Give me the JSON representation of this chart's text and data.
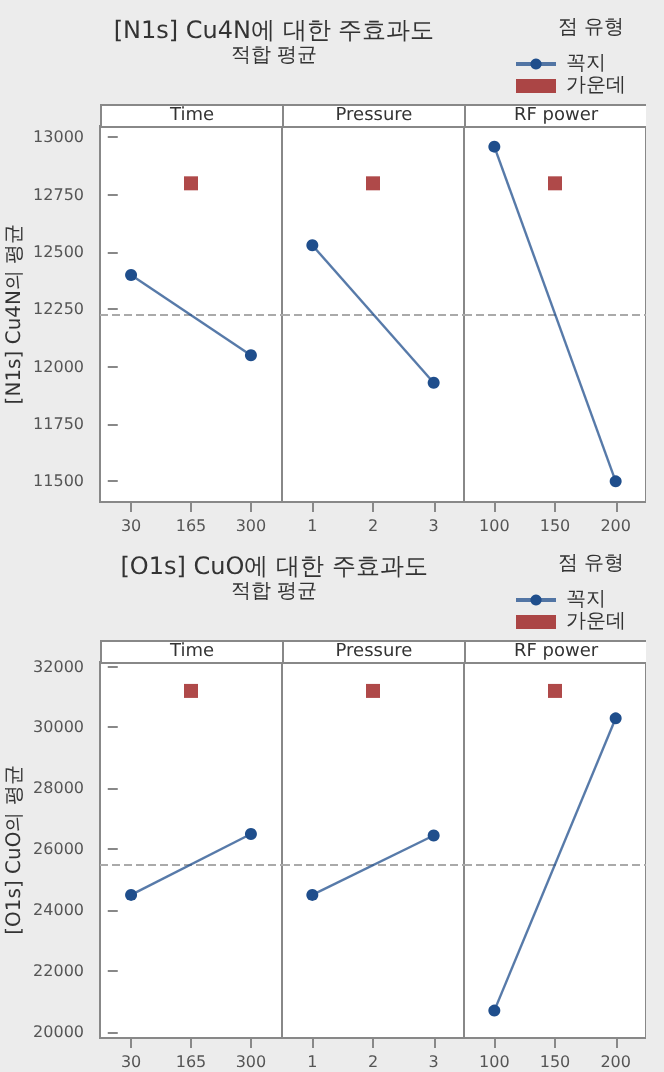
{
  "chart_data": [
    {
      "type": "line",
      "title": "[N1s] Cu4N에 대한 주효과도",
      "subtitle": "적합 평균",
      "ylabel": "[N1s] Cu4N의 평균",
      "xlabel": "Time",
      "legend": "top right",
      "legend_title": "점 유형",
      "marker": "circle",
      "grid": false,
      "xlim": [
        -40,
        370
      ],
      "xticks": [
        30,
        165,
        300
      ],
      "ylim": [
        11410,
        13050
      ],
      "yticks": [
        11500,
        11750,
        12000,
        12250,
        12500,
        12750,
        13000
      ],
      "ref_lines": [
        {
          "axis": "y",
          "value": 12225,
          "color": "#aaaaaa",
          "line_style": "dashed"
        }
      ],
      "series": [
        {
          "name": "꼭지",
          "color": "#1f4e8c",
          "x": [
            30,
            300
          ],
          "values": [
            12400,
            12050
          ]
        },
        {
          "name": "가운데",
          "type": "scatter",
          "marker": "square",
          "color": "#9b1c1c",
          "x": [
            165
          ],
          "values": [
            12800
          ]
        }
      ]
    },
    {
      "type": "line",
      "xlabel": "Pressure",
      "marker": "circle",
      "grid": false,
      "tick_labels": "x",
      "xlim": [
        0.5,
        3.5
      ],
      "xticks": [
        1,
        2,
        3
      ],
      "ylim": [
        11410,
        13050
      ],
      "ref_lines": [
        {
          "axis": "y",
          "value": 12225,
          "color": "#aaaaaa",
          "line_style": "dashed"
        }
      ],
      "series": [
        {
          "color": "#1f4e8c",
          "x": [
            1,
            3
          ],
          "values": [
            12530,
            11930
          ]
        },
        {
          "type": "scatter",
          "marker": "square",
          "color": "#9b1c1c",
          "x": [
            2
          ],
          "values": [
            12800
          ]
        }
      ]
    },
    {
      "type": "line",
      "xlabel": "RF power",
      "marker": "circle",
      "grid": false,
      "tick_labels": "x",
      "xlim": [
        75,
        225
      ],
      "xticks": [
        100,
        150,
        200
      ],
      "ylim": [
        11410,
        13050
      ],
      "ref_lines": [
        {
          "axis": "y",
          "value": 12225,
          "color": "#aaaaaa",
          "line_style": "dashed"
        }
      ],
      "series": [
        {
          "color": "#1f4e8c",
          "x": [
            100,
            200
          ],
          "values": [
            12960,
            11500
          ]
        },
        {
          "type": "scatter",
          "marker": "square",
          "color": "#9b1c1c",
          "x": [
            150
          ],
          "values": [
            12800
          ]
        }
      ]
    },
    {
      "type": "line",
      "title": "[O1s] CuO에 대한 주효과도",
      "subtitle": "적합 평균",
      "ylabel": "[O1s] CuO의 평균",
      "xlabel": "Time",
      "legend": "top right",
      "legend_title": "점 유형",
      "marker": "circle",
      "grid": false,
      "xlim": [
        -40,
        370
      ],
      "xticks": [
        30,
        165,
        300
      ],
      "ylim": [
        19800,
        32150
      ],
      "yticks": [
        20000,
        22000,
        24000,
        26000,
        28000,
        30000,
        32000
      ],
      "ref_lines": [
        {
          "axis": "y",
          "value": 25500,
          "color": "#aaaaaa",
          "line_style": "dashed"
        }
      ],
      "series": [
        {
          "name": "꼭지",
          "color": "#1f4e8c",
          "x": [
            30,
            300
          ],
          "values": [
            24500,
            26500
          ]
        },
        {
          "name": "가운데",
          "type": "scatter",
          "marker": "square",
          "color": "#9b1c1c",
          "x": [
            165
          ],
          "values": [
            31200
          ]
        }
      ]
    },
    {
      "type": "line",
      "xlabel": "Pressure",
      "marker": "circle",
      "grid": false,
      "tick_labels": "x",
      "xlim": [
        0.5,
        3.5
      ],
      "xticks": [
        1,
        2,
        3
      ],
      "ylim": [
        19800,
        32150
      ],
      "ref_lines": [
        {
          "axis": "y",
          "value": 25500,
          "color": "#aaaaaa",
          "line_style": "dashed"
        }
      ],
      "series": [
        {
          "color": "#1f4e8c",
          "x": [
            1,
            3
          ],
          "values": [
            24500,
            26450
          ]
        },
        {
          "type": "scatter",
          "marker": "square",
          "color": "#9b1c1c",
          "x": [
            2
          ],
          "values": [
            31200
          ]
        }
      ]
    },
    {
      "type": "line",
      "xlabel": "RF power",
      "marker": "circle",
      "grid": false,
      "tick_labels": "x",
      "xlim": [
        75,
        225
      ],
      "xticks": [
        100,
        150,
        200
      ],
      "ylim": [
        19800,
        32150
      ],
      "ref_lines": [
        {
          "axis": "y",
          "value": 25500,
          "color": "#aaaaaa",
          "line_style": "dashed"
        }
      ],
      "series": [
        {
          "color": "#1f4e8c",
          "x": [
            100,
            200
          ],
          "values": [
            20700,
            30300
          ]
        },
        {
          "type": "scatter",
          "marker": "square",
          "color": "#9b1c1c",
          "x": [
            150
          ],
          "values": [
            31200
          ]
        }
      ]
    }
  ]
}
